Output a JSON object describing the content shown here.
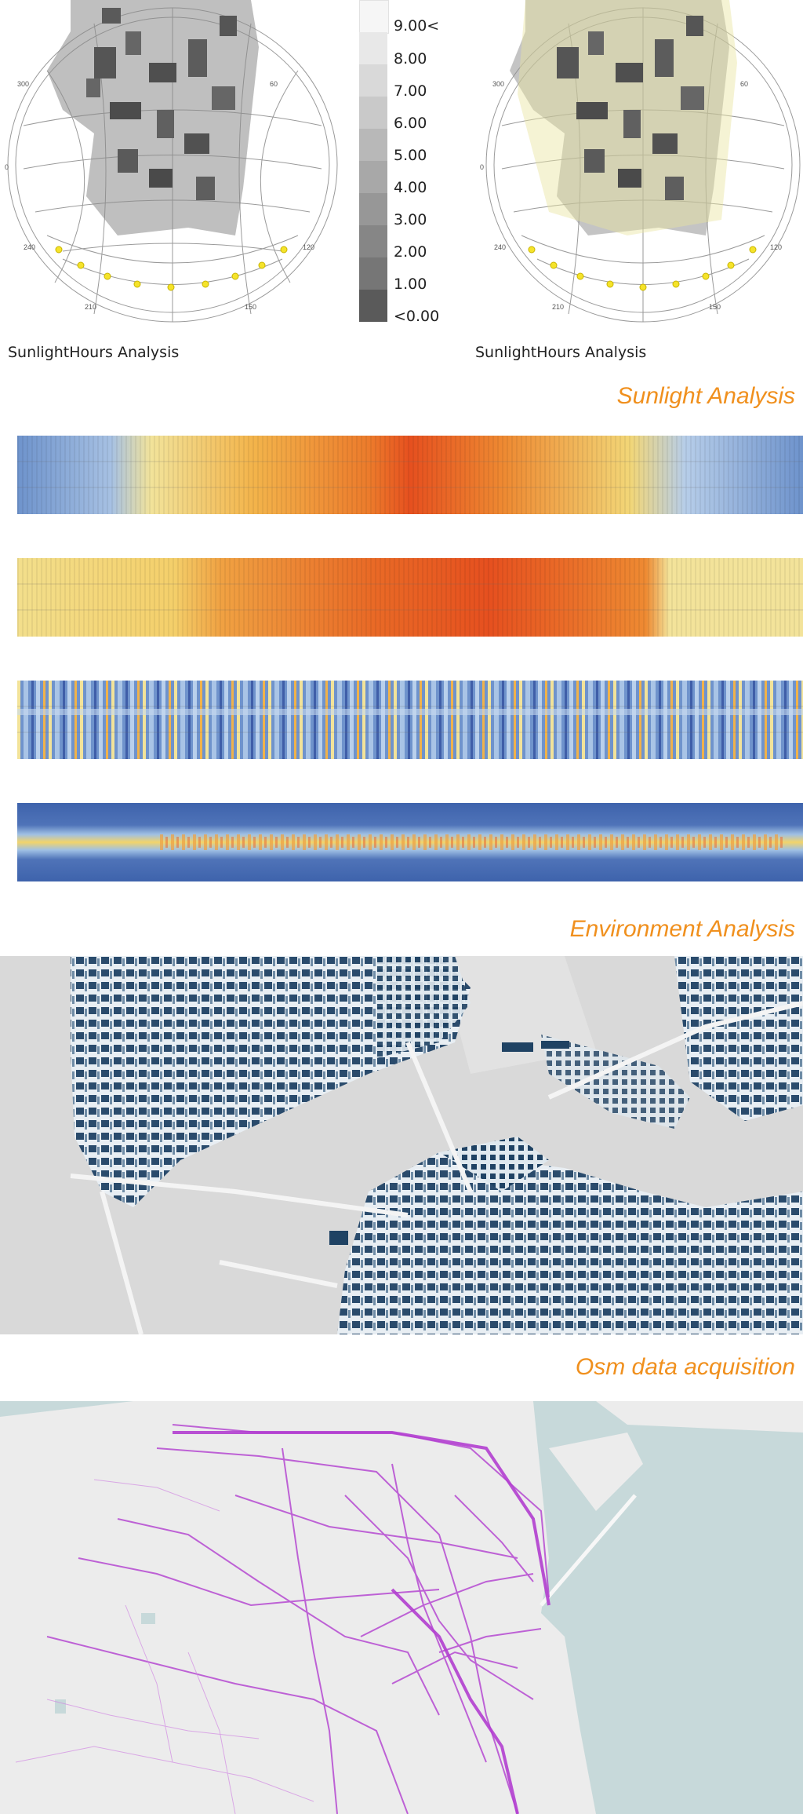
{
  "sections": {
    "sunlight": {
      "title": "Sunlight Analysis",
      "left_caption": "SunlightHours Analysis",
      "right_caption": "SunlightHours Analysis",
      "legend": [
        "9.00<",
        "8.00",
        "7.00",
        "6.00",
        "5.00",
        "4.00",
        "3.00",
        "2.00",
        "1.00",
        "<0.00"
      ],
      "legend_colors": [
        "#f6f6f6",
        "#e8e8e8",
        "#d9d9d9",
        "#c9c9c9",
        "#b8b8b8",
        "#a8a8a8",
        "#979797",
        "#868686",
        "#767676",
        "#5a5a5a"
      ],
      "compass_left": [
        "300",
        "60",
        "0",
        "240",
        "120",
        "210",
        "150"
      ],
      "compass_right": [
        "300",
        "60",
        "0",
        "240",
        "120",
        "210",
        "150"
      ]
    },
    "environment": {
      "title": "Environment Analysis",
      "heatmap_colors": {
        "cold": "#5b82c2",
        "cool": "#a9c4e6",
        "mild": "#f2e39a",
        "warm": "#f3b44b",
        "hot": "#e9501f"
      }
    },
    "osm": {
      "title": "Osm data acquisition",
      "map_colors": {
        "building_dark": "#1f4263",
        "land": "#dcdcdc",
        "water": "#c9d6d6"
      }
    },
    "transit": {
      "map_colors": {
        "land": "#ececec",
        "water": "#c7d9da",
        "route": "#b23fd0"
      }
    }
  }
}
